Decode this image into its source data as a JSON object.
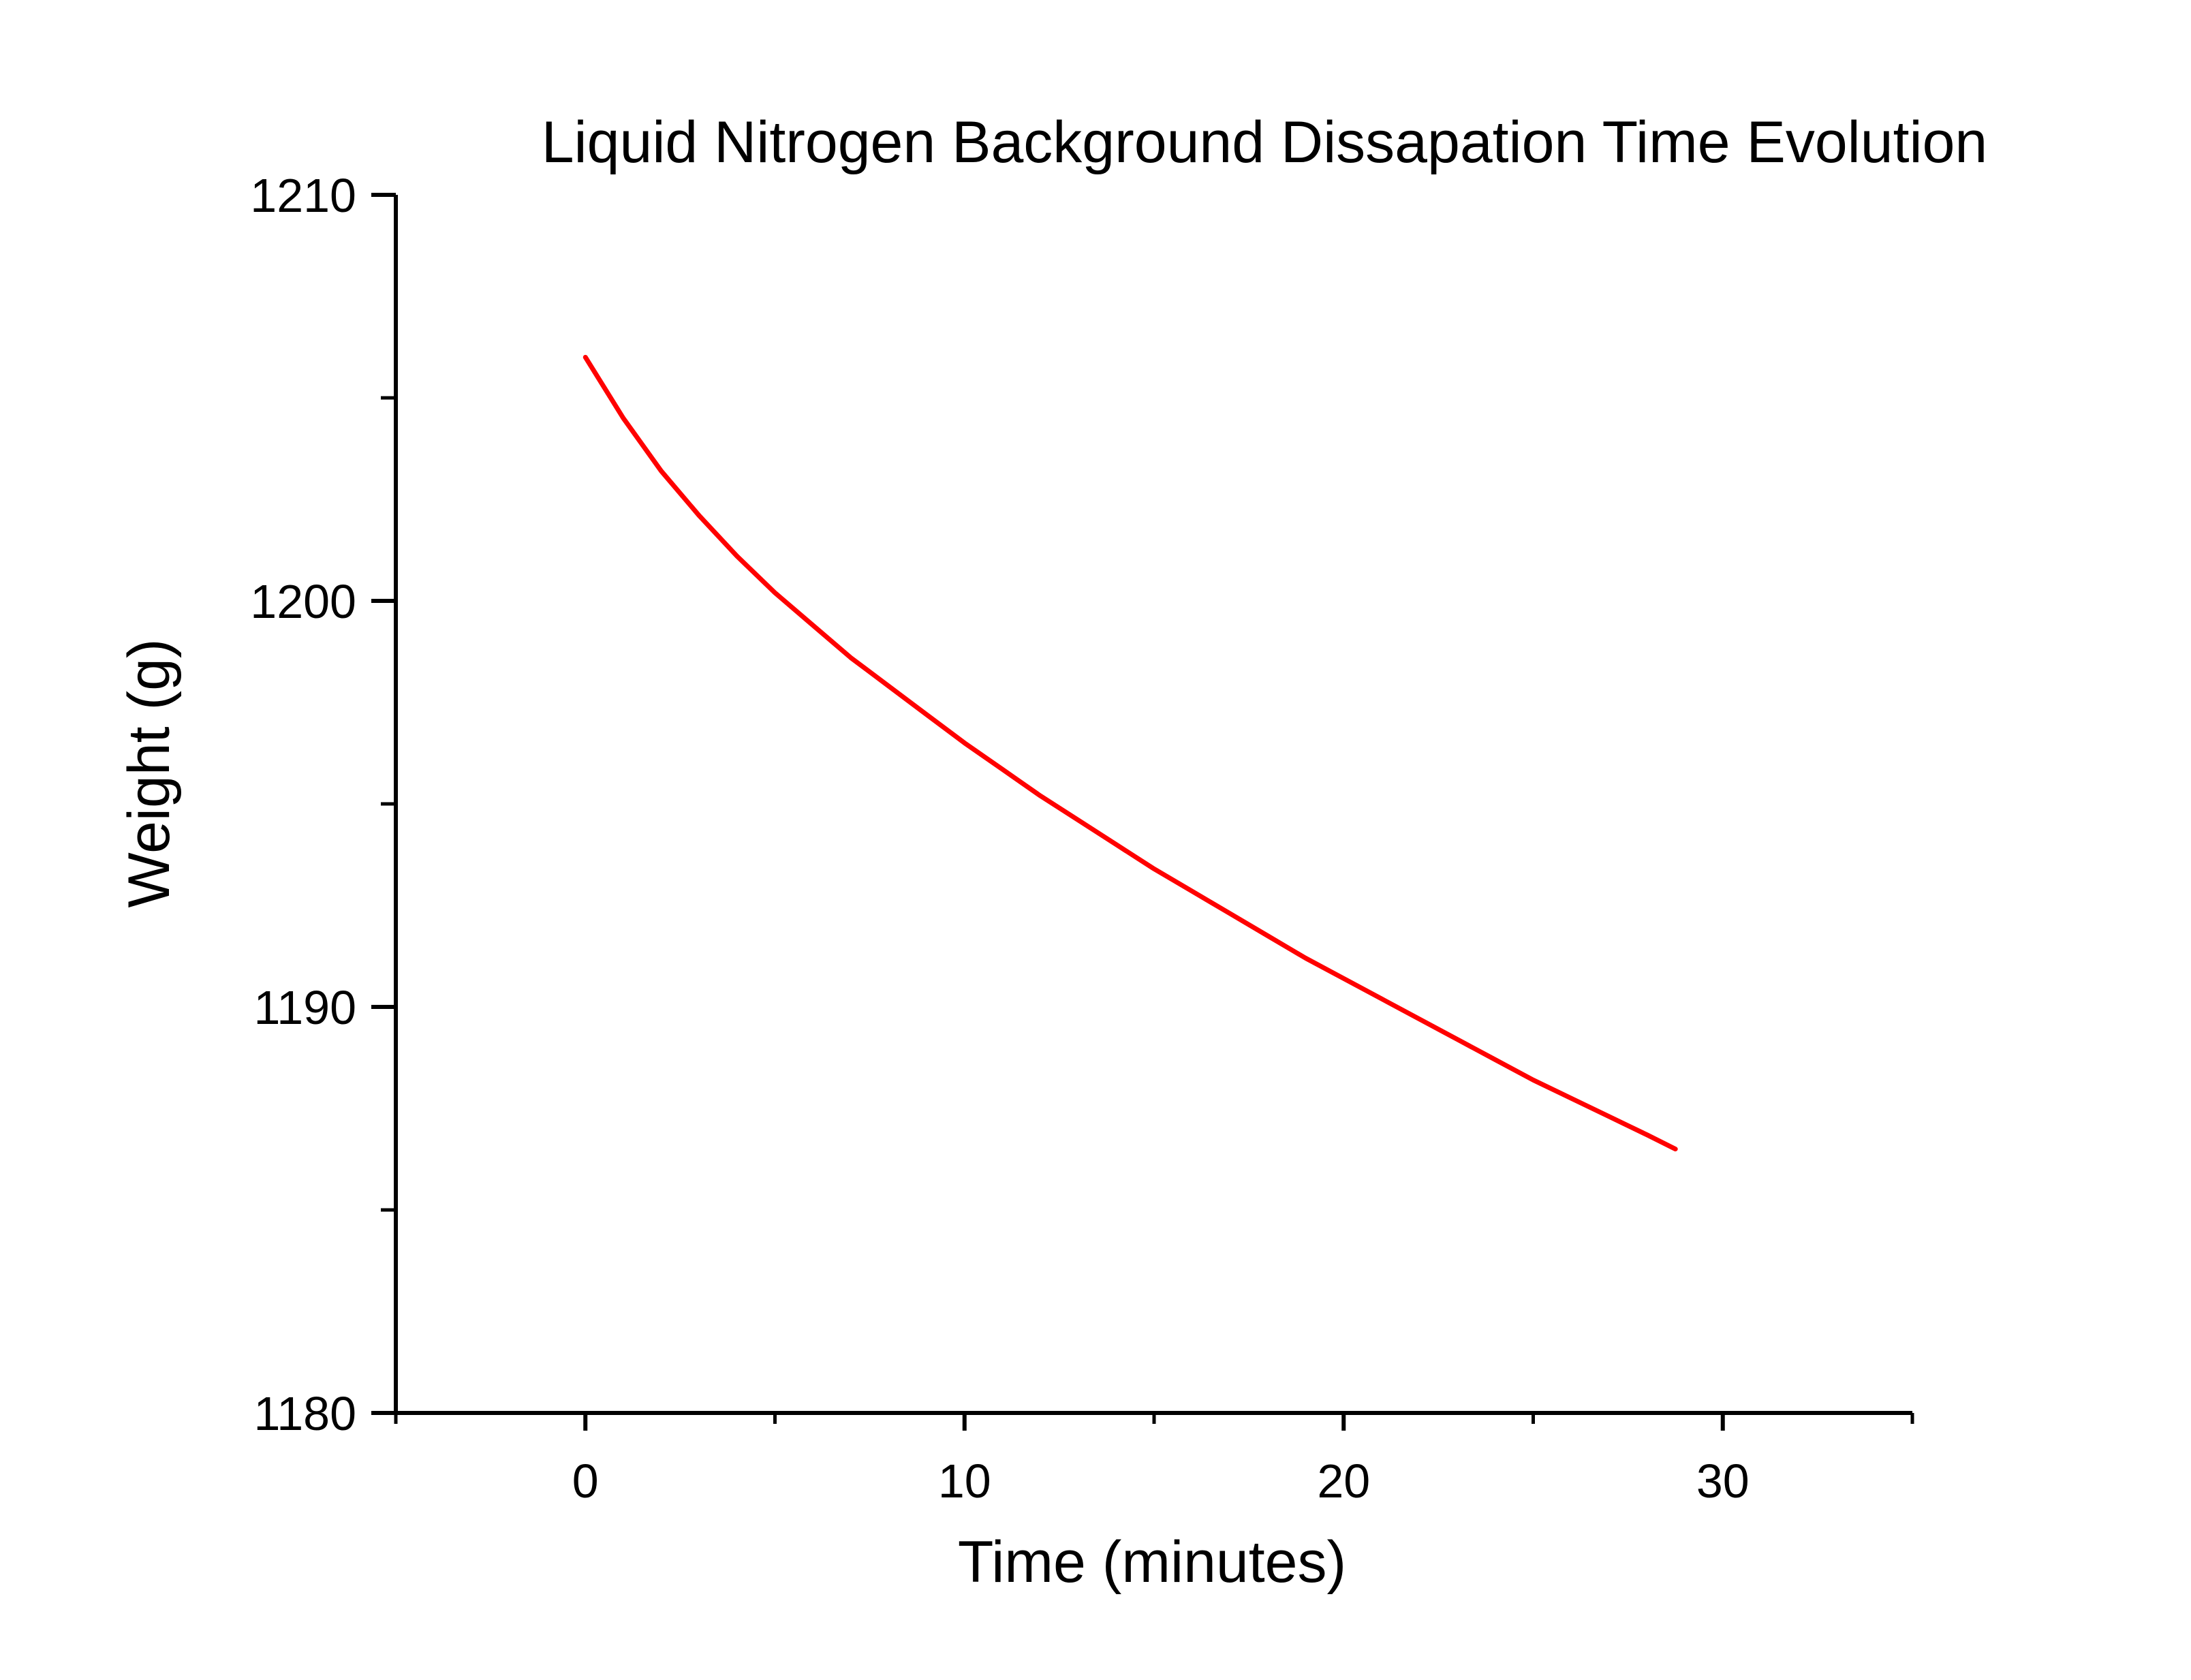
{
  "chart_data": {
    "type": "line",
    "title": "Liquid Nitrogen Background Dissapation Time Evolution",
    "xlabel": "Time (minutes)",
    "ylabel": "Weight (g)",
    "xlim": [
      -5,
      35
    ],
    "ylim": [
      1180,
      1210
    ],
    "x_ticks": [
      0,
      10,
      20,
      30
    ],
    "x_tick_labels": [
      "0",
      "10",
      "20",
      "30"
    ],
    "x_minor_ticks": [
      -5,
      5,
      15,
      25,
      35
    ],
    "y_ticks": [
      1180,
      1190,
      1200,
      1210
    ],
    "y_tick_labels": [
      "1180",
      "1190",
      "1200",
      "1210"
    ],
    "y_minor_ticks": [
      1185,
      1195,
      1205
    ],
    "grid": false,
    "legend": "none",
    "series": [
      {
        "color": "#ff0000",
        "x": [
          0,
          1,
          2,
          3,
          4,
          5,
          6,
          7,
          8,
          9,
          10,
          11,
          12,
          13,
          14,
          15,
          16,
          17,
          18,
          19,
          20,
          21,
          22,
          23,
          24,
          25,
          26,
          27,
          28,
          28.75
        ],
        "values": [
          1206.0,
          1204.5,
          1203.2,
          1202.1,
          1201.1,
          1200.2,
          1199.4,
          1198.6,
          1197.9,
          1197.2,
          1196.5,
          1195.85,
          1195.2,
          1194.6,
          1194.0,
          1193.4,
          1192.85,
          1192.3,
          1191.75,
          1191.2,
          1190.7,
          1190.2,
          1189.7,
          1189.2,
          1188.7,
          1188.2,
          1187.75,
          1187.3,
          1186.85,
          1186.5
        ]
      }
    ]
  }
}
